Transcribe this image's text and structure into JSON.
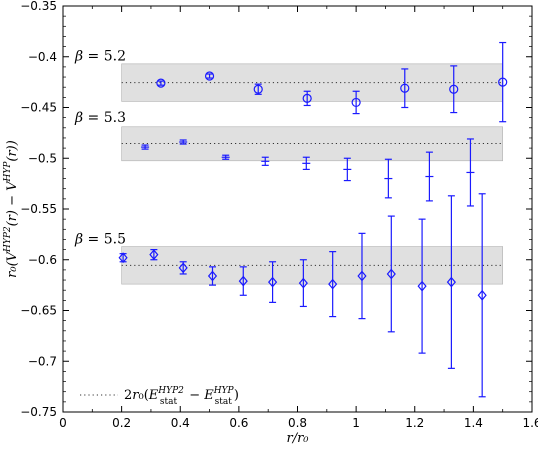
{
  "chart_data": {
    "type": "scatter",
    "xlabel": "r/r₀",
    "ylabel": "r₀(V^HYP2(r) − V^HYP(r))",
    "xlim": [
      0,
      1.6
    ],
    "ylim": [
      -0.75,
      -0.35
    ],
    "x_ticks": [
      "0",
      "0.2",
      "0.4",
      "0.6",
      "0.8",
      "1",
      "1.2",
      "1.4",
      "1.6"
    ],
    "y_ticks": [
      "−0.35",
      "−0.4",
      "−0.45",
      "−0.5",
      "−0.55",
      "−0.6",
      "−0.65",
      "−0.7",
      "−0.75"
    ],
    "legend": {
      "placement": "bottom-left",
      "label": "2r₀(E_stat^HYP2 − E_stat^HYP)"
    },
    "colors": {
      "points": "#1a1aff",
      "band": "#e0e0e0",
      "band_edge": "#b0b0b0",
      "line": "#333333"
    },
    "series": [
      {
        "name": "β = 5.2",
        "marker": "circle",
        "band": {
          "center": -0.4255,
          "low": -0.444,
          "high": -0.407,
          "x_range": [
            0.2,
            1.5
          ]
        },
        "points": [
          {
            "x": 0.334,
            "y": -0.426,
            "err": 0.002
          },
          {
            "x": 0.5,
            "y": -0.419,
            "err": 0.002
          },
          {
            "x": 0.666,
            "y": -0.432,
            "err": 0.005
          },
          {
            "x": 0.833,
            "y": -0.441,
            "err": 0.007
          },
          {
            "x": 1.0,
            "y": -0.445,
            "err": 0.011
          },
          {
            "x": 1.166,
            "y": -0.431,
            "err": 0.019
          },
          {
            "x": 1.333,
            "y": -0.432,
            "err": 0.023
          },
          {
            "x": 1.5,
            "y": -0.425,
            "err": 0.039
          }
        ]
      },
      {
        "name": "β = 5.3",
        "marker": "cross",
        "band": {
          "center": -0.4855,
          "low": -0.5025,
          "high": -0.469,
          "x_range": [
            0.2,
            1.5
          ]
        },
        "points": [
          {
            "x": 0.28,
            "y": -0.489,
            "err": 0.002
          },
          {
            "x": 0.41,
            "y": -0.484,
            "err": 0.002
          },
          {
            "x": 0.555,
            "y": -0.499,
            "err": 0.002
          },
          {
            "x": 0.69,
            "y": -0.503,
            "err": 0.004
          },
          {
            "x": 0.83,
            "y": -0.505,
            "err": 0.006
          },
          {
            "x": 0.97,
            "y": -0.511,
            "err": 0.011
          },
          {
            "x": 1.11,
            "y": -0.52,
            "err": 0.019
          },
          {
            "x": 1.25,
            "y": -0.518,
            "err": 0.024
          },
          {
            "x": 1.39,
            "y": -0.514,
            "err": 0.033
          }
        ]
      },
      {
        "name": "β = 5.5",
        "marker": "diamond",
        "band": {
          "center": -0.6055,
          "low": -0.624,
          "high": -0.587,
          "x_range": [
            0.2,
            1.5
          ]
        },
        "points": [
          {
            "x": 0.205,
            "y": -0.598,
            "err": 0.004
          },
          {
            "x": 0.31,
            "y": -0.595,
            "err": 0.005
          },
          {
            "x": 0.41,
            "y": -0.608,
            "err": 0.006
          },
          {
            "x": 0.51,
            "y": -0.616,
            "err": 0.009
          },
          {
            "x": 0.615,
            "y": -0.621,
            "err": 0.014
          },
          {
            "x": 0.715,
            "y": -0.622,
            "err": 0.02
          },
          {
            "x": 0.82,
            "y": -0.623,
            "err": 0.023
          },
          {
            "x": 0.92,
            "y": -0.624,
            "err": 0.032
          },
          {
            "x": 1.02,
            "y": -0.616,
            "err": 0.042
          },
          {
            "x": 1.12,
            "y": -0.614,
            "err": 0.057
          },
          {
            "x": 1.225,
            "y": -0.626,
            "err": 0.066
          },
          {
            "x": 1.325,
            "y": -0.622,
            "err": 0.085
          },
          {
            "x": 1.43,
            "y": -0.635,
            "err": 0.1
          }
        ]
      }
    ]
  }
}
